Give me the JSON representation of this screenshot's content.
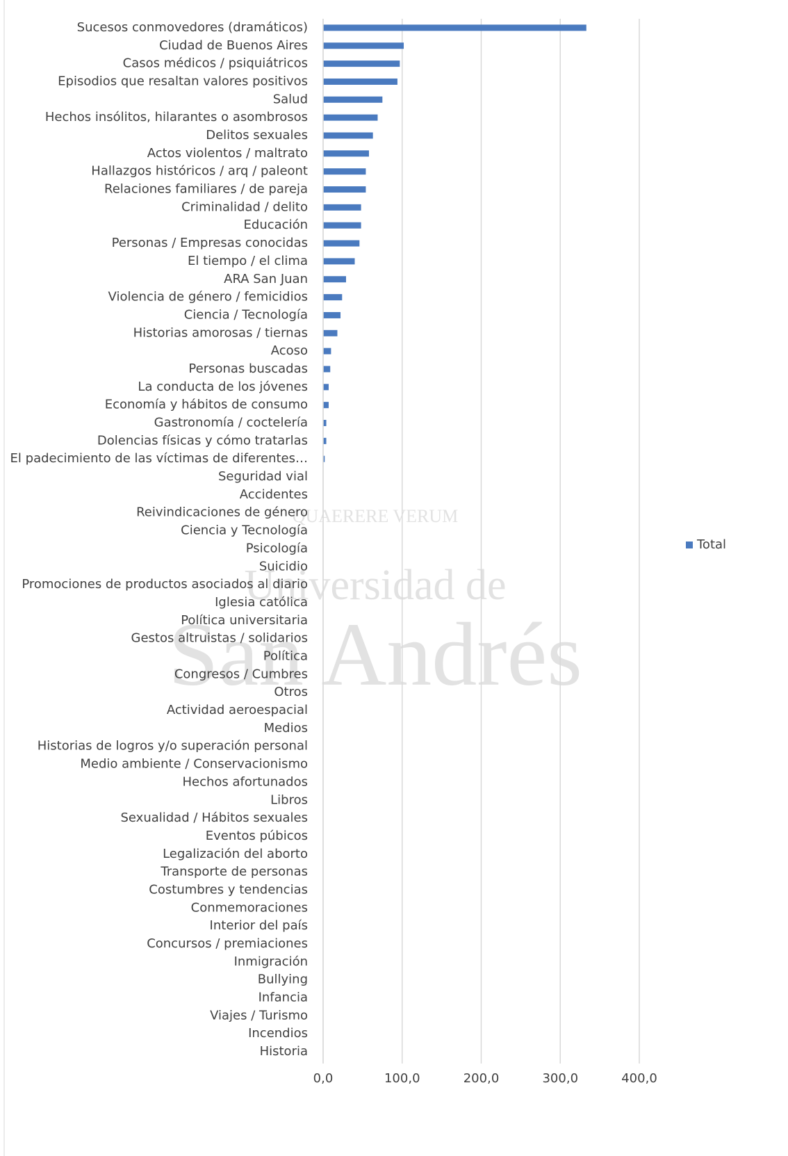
{
  "chart_data": {
    "type": "barh",
    "categories": [
      "Sucesos conmovedores (dramáticos)",
      "Ciudad de Buenos Aires",
      "Casos médicos / psiquiátricos",
      "Episodios que resaltan valores positivos",
      "Salud",
      "Hechos insólitos, hilarantes o asombrosos",
      "Delitos sexuales",
      "Actos violentos / maltrato",
      "Hallazgos históricos / arq / paleont",
      "Relaciones familiares / de pareja",
      "Criminalidad / delito",
      "Educación",
      "Personas / Empresas conocidas",
      "El tiempo / el clima",
      "ARA San Juan",
      "Violencia de género / femicidios",
      "Ciencia / Tecnología",
      "Historias amorosas / tiernas",
      "Acoso",
      "Personas buscadas",
      "La conducta de los jóvenes",
      "Economía y hábitos de consumo",
      "Gastronomía / coctelería",
      "Dolencias físicas y cómo tratarlas",
      "El padecimiento de las víctimas de diferentes…",
      "Seguridad vial",
      "Accidentes",
      "Reivindicaciones de género",
      "Ciencia y Tecnología",
      "Psicología",
      "Suicidio",
      "Promociones de productos asociados al diario",
      "Iglesia católica",
      "Política universitaria",
      "Gestos altruistas / solidarios",
      "Política",
      "Congresos / Cumbres",
      "Otros",
      "Actividad aeroespacial",
      "Medios",
      "Historias de logros y/o superación personal",
      "Medio ambiente / Conservacionismo",
      "Hechos afortunados",
      "Libros",
      "Sexualidad / Hábitos sexuales",
      "Eventos púbicos",
      "Legalización del aborto",
      "Transporte de personas",
      "Costumbres y tendencias",
      "Conmemoraciones",
      "Interior del país",
      "Concursos / premiaciones",
      "Inmigración",
      "Bullying",
      "Infancia",
      "Viajes / Turismo",
      "Incendios",
      "Historia"
    ],
    "series": [
      {
        "name": "Total",
        "color": "#4a7abf",
        "values": [
          333,
          102,
          97,
          94,
          75,
          69,
          63,
          58,
          54,
          54,
          48,
          48,
          46,
          40,
          29,
          24,
          22,
          18,
          10,
          9,
          7,
          7,
          4,
          4,
          2,
          0,
          0,
          0,
          0,
          0,
          0,
          0,
          0,
          0,
          0,
          0,
          0,
          0,
          0,
          0,
          0,
          0,
          0,
          0,
          0,
          0,
          0,
          0,
          0,
          0,
          0,
          0,
          0,
          0,
          0,
          0,
          0,
          0
        ]
      }
    ],
    "xlim": [
      0,
      400
    ],
    "xticks": [
      {
        "value": 0,
        "label": "0,0"
      },
      {
        "value": 100,
        "label": "100,0"
      },
      {
        "value": 200,
        "label": "200,0"
      },
      {
        "value": 300,
        "label": "300,0"
      },
      {
        "value": 400,
        "label": "400,0"
      }
    ],
    "grid": true,
    "legend": "right",
    "watermark": {
      "motto": "QUAERERE VERUM",
      "line1": "Universidad de",
      "line2": "San Andrés"
    }
  }
}
